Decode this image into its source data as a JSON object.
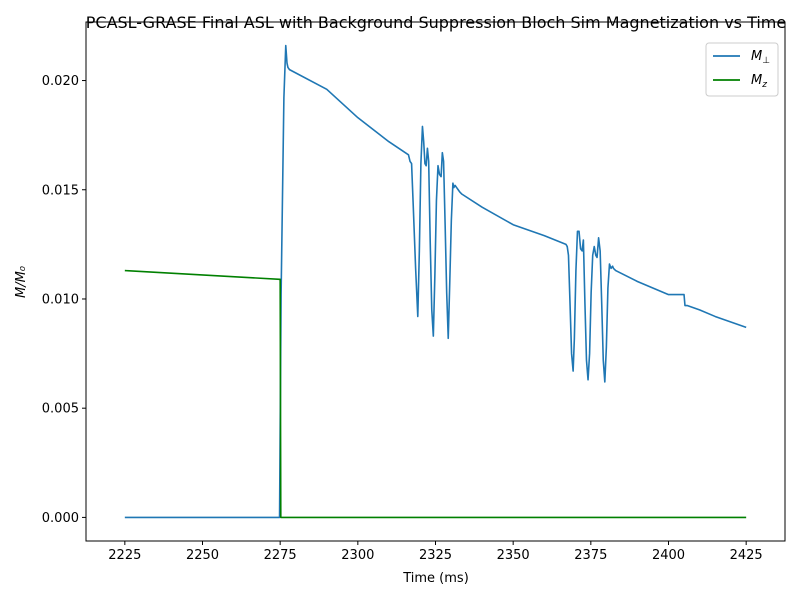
{
  "chart_data": {
    "type": "line",
    "title": "PCASL-GRASE Final ASL with Background Suppression Bloch Sim Magnetization vs Time",
    "xlabel": "Time (ms)",
    "ylabel": "M/M₀",
    "xlim": [
      2212.5,
      2437.5
    ],
    "ylim": [
      -0.00108,
      0.02268
    ],
    "xticks": [
      2225,
      2250,
      2275,
      2300,
      2325,
      2350,
      2375,
      2400,
      2425
    ],
    "yticks": [
      0.0,
      0.005,
      0.01,
      0.015,
      0.02
    ],
    "ytick_labels": [
      "0.000",
      "0.005",
      "0.010",
      "0.015",
      "0.020"
    ],
    "grid": false,
    "legend": "top-right",
    "legend_base": "M",
    "series": [
      {
        "name": "M⊥",
        "label_sub": "⊥",
        "color": "#1f77b4",
        "x": [
          2225,
          2274.8,
          2275.3,
          2276.2,
          2276.8,
          2277.2,
          2277.5,
          2278,
          2290,
          2300,
          2310,
          2316.3,
          2316.8,
          2317.3,
          2317.8,
          2318.6,
          2319.3,
          2319.8,
          2320.3,
          2320.8,
          2321.2,
          2321.6,
          2322,
          2322.4,
          2322.8,
          2323.3,
          2323.8,
          2324.3,
          2324.8,
          2325.3,
          2325.8,
          2326.3,
          2326.8,
          2327.2,
          2327.6,
          2328.1,
          2328.6,
          2329.1,
          2329.6,
          2330.1,
          2330.6,
          2330.9,
          2331.3,
          2331.8,
          2332.3,
          2332.8,
          2333.5,
          2340,
          2350,
          2360,
          2367,
          2367.4,
          2367.8,
          2368.3,
          2368.8,
          2369.3,
          2369.7,
          2370.2,
          2370.7,
          2371.2,
          2371.7,
          2372.2,
          2372.6,
          2373.1,
          2373.6,
          2374.1,
          2374.6,
          2375.1,
          2375.6,
          2376.1,
          2376.6,
          2377,
          2377.5,
          2378,
          2378.5,
          2379,
          2379.5,
          2380,
          2380.5,
          2381,
          2381.5,
          2382,
          2382.3,
          2383,
          2390,
          2400,
          2405,
          2405.3,
          2406,
          2410,
          2415,
          2425
        ],
        "y": [
          0.0,
          0.0,
          0.0102,
          0.0192,
          0.0216,
          0.0208,
          0.0206,
          0.0205,
          0.0196,
          0.0183,
          0.0172,
          0.0166,
          0.0163,
          0.0162,
          0.0144,
          0.0114,
          0.0092,
          0.0122,
          0.0162,
          0.0179,
          0.0172,
          0.0162,
          0.0161,
          0.0169,
          0.0163,
          0.0126,
          0.0095,
          0.0083,
          0.0111,
          0.0145,
          0.0161,
          0.0157,
          0.0156,
          0.0167,
          0.0163,
          0.0134,
          0.0103,
          0.0082,
          0.0108,
          0.0136,
          0.0153,
          0.0151,
          0.0152,
          0.0151,
          0.015,
          0.0149,
          0.0148,
          0.0142,
          0.0134,
          0.0129,
          0.0125,
          0.0124,
          0.012,
          0.0098,
          0.0075,
          0.0067,
          0.0082,
          0.0113,
          0.0131,
          0.0131,
          0.0123,
          0.0122,
          0.0127,
          0.0098,
          0.0072,
          0.0063,
          0.0075,
          0.0103,
          0.012,
          0.0124,
          0.012,
          0.0119,
          0.0128,
          0.0122,
          0.0098,
          0.0072,
          0.0062,
          0.0078,
          0.0105,
          0.0116,
          0.0114,
          0.0115,
          0.0114,
          0.0113,
          0.0108,
          0.0102,
          0.0102,
          0.0097,
          0.0097,
          0.0095,
          0.0092,
          0.0087
        ]
      },
      {
        "name": "Mz",
        "label_sub": "z",
        "color": "#008000",
        "x": [
          2225,
          2274.8,
          2275,
          2275.2,
          2425
        ],
        "y": [
          0.0113,
          0.0109,
          0.0109,
          0.0,
          0.0
        ]
      }
    ]
  }
}
